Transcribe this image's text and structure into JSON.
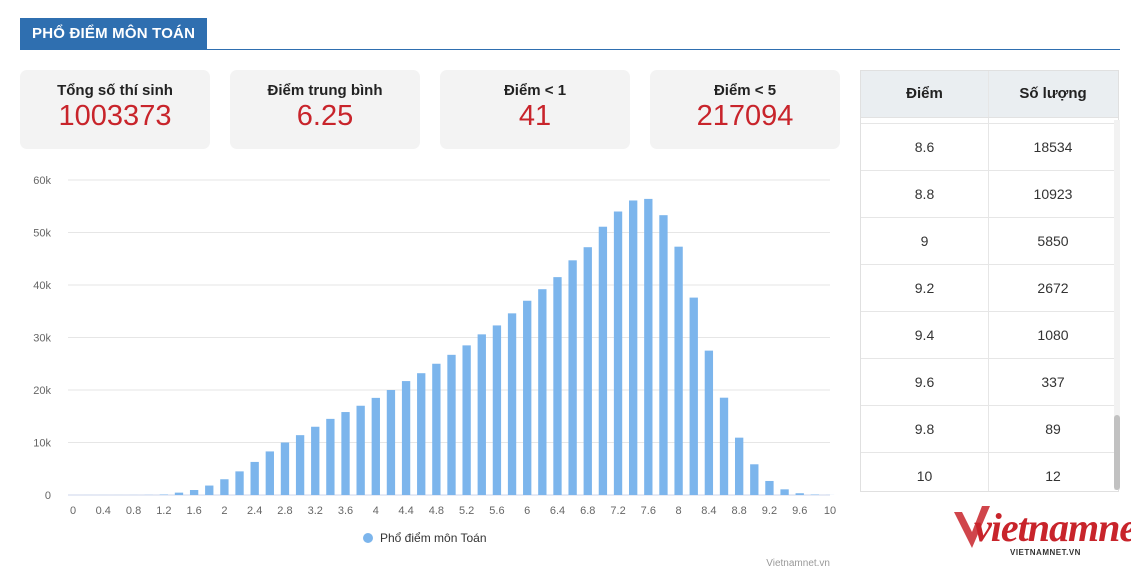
{
  "header": {
    "title": "PHỔ ĐIỂM MÔN TOÁN"
  },
  "stats": [
    {
      "label": "Tổng số thí sinh",
      "value": "1003373"
    },
    {
      "label": "Điểm trung bình",
      "value": "6.25"
    },
    {
      "label": "Điểm < 1",
      "value": "41"
    },
    {
      "label": "Điểm < 5",
      "value": "217094"
    }
  ],
  "table": {
    "headers": [
      "Điểm",
      "Số lượng"
    ],
    "rows": [
      [
        "8.6",
        "18534"
      ],
      [
        "8.8",
        "10923"
      ],
      [
        "9",
        "5850"
      ],
      [
        "9.2",
        "2672"
      ],
      [
        "9.4",
        "1080"
      ],
      [
        "9.6",
        "337"
      ],
      [
        "9.8",
        "89"
      ],
      [
        "10",
        "12"
      ]
    ]
  },
  "colors": {
    "accent": "#2f6fb0",
    "stat_value": "#c8242b",
    "bar": "#7cb5ec"
  },
  "watermark": {
    "logo_text": "vietnamnet",
    "logo_sub": "VIETNAMNET.VN"
  },
  "chart_data": {
    "type": "bar",
    "x": [
      0,
      0.2,
      0.4,
      0.6,
      0.8,
      1,
      1.2,
      1.4,
      1.6,
      1.8,
      2,
      2.2,
      2.4,
      2.6,
      2.8,
      3,
      3.2,
      3.4,
      3.6,
      3.8,
      4,
      4.2,
      4.4,
      4.6,
      4.8,
      5,
      5.2,
      5.4,
      5.6,
      5.8,
      6,
      6.2,
      6.4,
      6.6,
      6.8,
      7,
      7.2,
      7.4,
      7.6,
      7.8,
      8,
      8.2,
      8.4,
      8.6,
      8.8,
      9,
      9.2,
      9.4,
      9.6,
      9.8,
      10
    ],
    "series": [
      {
        "name": "Phổ điểm môn Toán",
        "values": [
          0,
          2,
          3,
          5,
          8,
          23,
          95,
          450,
          950,
          1800,
          3000,
          4500,
          6300,
          8300,
          10000,
          11400,
          13000,
          14500,
          15800,
          17000,
          18500,
          20000,
          21700,
          23200,
          25000,
          26700,
          28500,
          30600,
          32300,
          34600,
          37000,
          39200,
          41500,
          44700,
          47200,
          51100,
          54000,
          56100,
          56400,
          53300,
          47300,
          37600,
          27500,
          18534,
          10923,
          5850,
          2672,
          1080,
          337,
          89,
          12
        ]
      }
    ],
    "x_tick_labels": [
      "0",
      "0.4",
      "0.8",
      "1.2",
      "1.6",
      "2",
      "2.4",
      "2.8",
      "3.2",
      "3.6",
      "4",
      "4.4",
      "4.8",
      "5.2",
      "5.6",
      "6",
      "6.4",
      "6.8",
      "7.2",
      "7.6",
      "8",
      "8.4",
      "8.8",
      "9.2",
      "9.6",
      "10"
    ],
    "y_tick_labels": [
      "0",
      "10k",
      "20k",
      "30k",
      "40k",
      "50k",
      "60k"
    ],
    "ylim": [
      0,
      60000
    ],
    "grid": true,
    "legend": "bottom",
    "credit": "Vietnamnet.vn"
  }
}
